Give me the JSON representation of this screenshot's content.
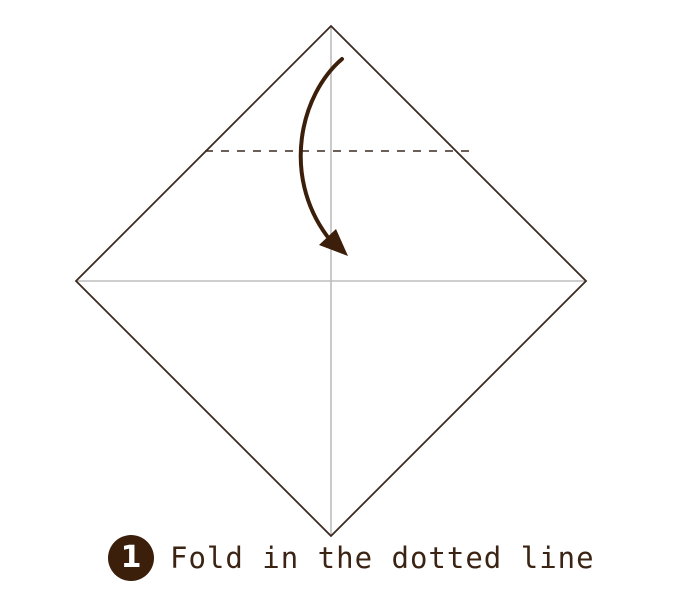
{
  "step": {
    "number": "1",
    "instruction": "Fold in the dotted line"
  },
  "colors": {
    "outline": "#3b2a22",
    "crease": "#bdbdbd",
    "fold_line": "#3b2a22",
    "arrow": "#3b1f0a",
    "badge": "#3b1f0a"
  }
}
